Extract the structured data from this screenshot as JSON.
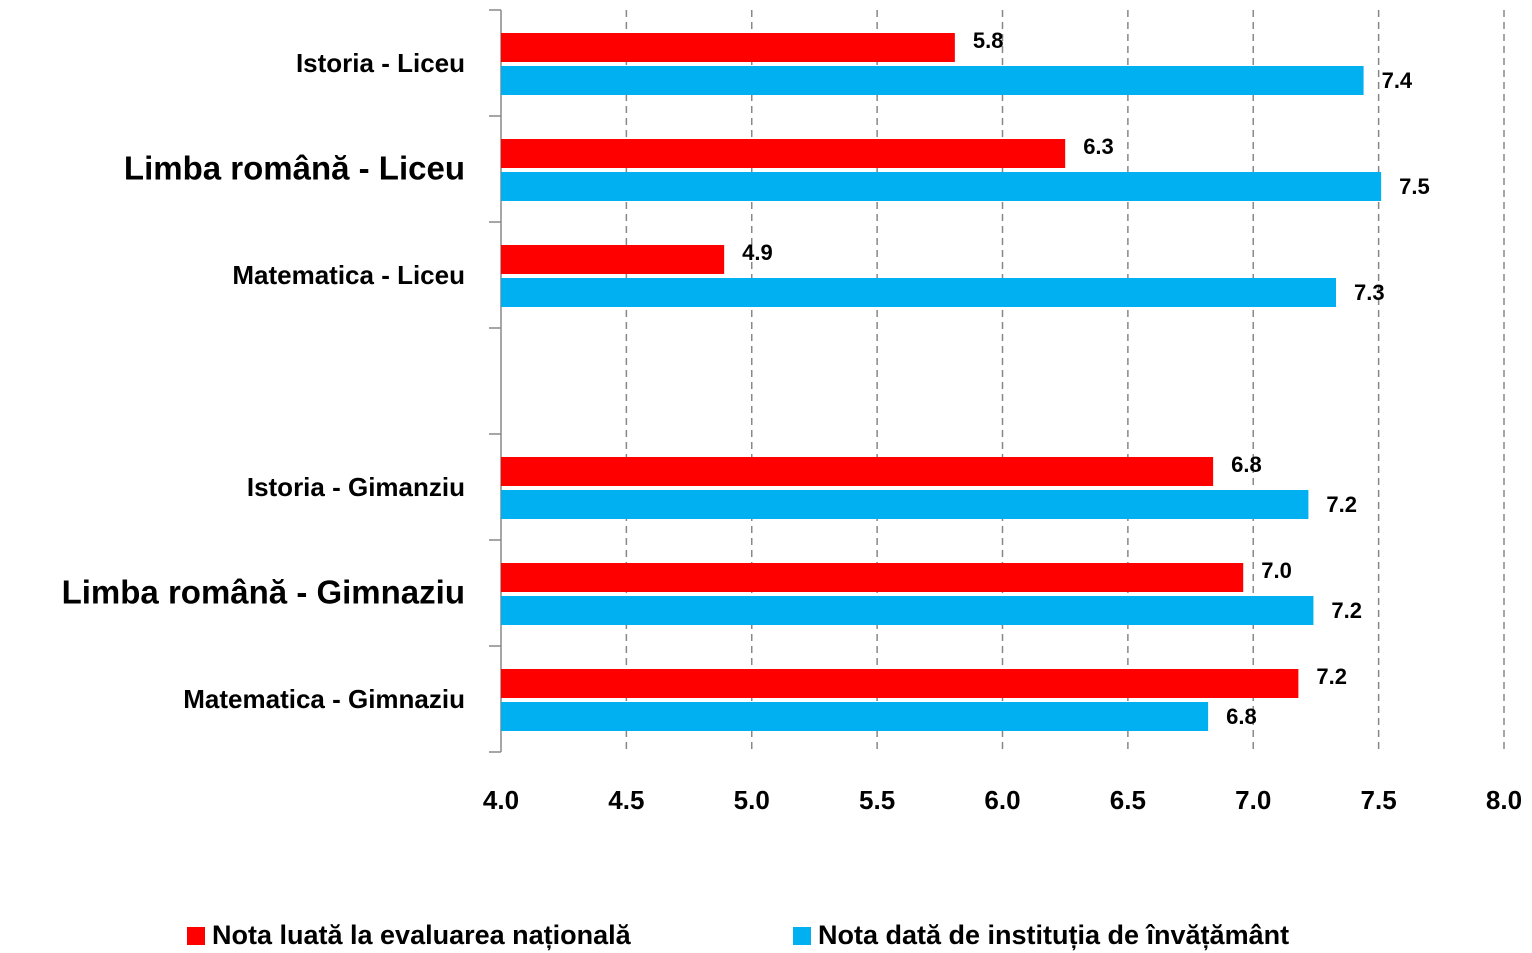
{
  "chart_data": {
    "type": "barh",
    "categories": [
      "Istoria - Liceu",
      "Limba română - Liceu",
      "Matematica - Liceu",
      null,
      "Istoria - Gimanziu",
      "Limba română - Gimnaziu",
      "Matematica - Gimnaziu"
    ],
    "series": [
      {
        "name": "Nota luată la evaluarea națională",
        "color": "#ff0000",
        "values": [
          5.81,
          6.25,
          4.89,
          null,
          6.84,
          6.96,
          7.18
        ],
        "value_labels": [
          "5.8",
          "6.3",
          "4.9",
          null,
          "6.8",
          "7.0",
          "7.2"
        ]
      },
      {
        "name": "Nota dată de instituția de învățământ",
        "color": "#00b0f0",
        "values": [
          7.44,
          7.51,
          7.33,
          null,
          7.22,
          7.24,
          6.82
        ],
        "value_labels": [
          "7.4",
          "7.5",
          "7.3",
          null,
          "7.2",
          "7.2",
          "6.8"
        ]
      }
    ],
    "xlim": [
      4,
      8
    ],
    "xticks": [
      {
        "value": 4,
        "label": "4.0"
      },
      {
        "value": 4.5,
        "label": "4.5"
      },
      {
        "value": 5,
        "label": "5.0"
      },
      {
        "value": 5.5,
        "label": "5.5"
      },
      {
        "value": 6,
        "label": "6.0"
      },
      {
        "value": 6.5,
        "label": "6.5"
      },
      {
        "value": 7,
        "label": "7.0"
      },
      {
        "value": 7.5,
        "label": "7.5"
      },
      {
        "value": 8,
        "label": "8.0"
      }
    ],
    "grid": true,
    "legend": "bottom"
  }
}
